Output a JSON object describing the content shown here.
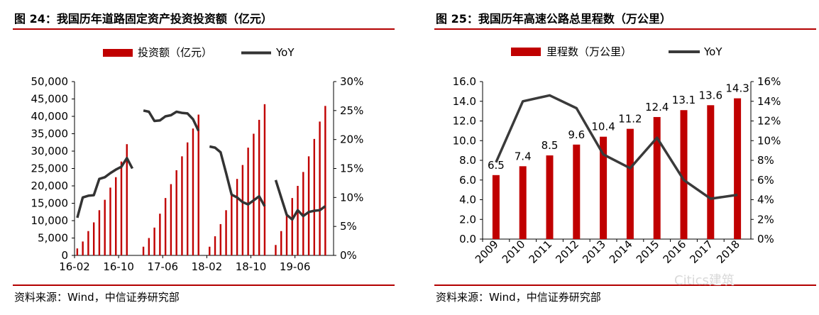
{
  "left": {
    "title": "图 24：我国历年道路固定资产投资投资额（亿元）",
    "source": "资料来源：Wind，中信证券研究部",
    "chart_data": {
      "type": "bar",
      "legend_position": "top",
      "grid": false,
      "x_tick_labels": [
        "16-02",
        "16-10",
        "17-06",
        "18-02",
        "18-10",
        "19-06"
      ],
      "y_ticks": [
        "0",
        "5,000",
        "10,000",
        "15,000",
        "20,000",
        "25,000",
        "30,000",
        "35,000",
        "40,000",
        "45,000",
        "50,000"
      ],
      "y2_ticks": [
        "0%",
        "5%",
        "10%",
        "15%",
        "20%",
        "25%",
        "30%"
      ],
      "ylim": [
        0,
        50000
      ],
      "y2lim": [
        0,
        30
      ],
      "categories": [
        "16-02",
        "16-03",
        "16-04",
        "16-05",
        "16-06",
        "16-07",
        "16-08",
        "16-09",
        "16-10",
        "16-11",
        "16-12",
        "17-01",
        "17-02",
        "17-03",
        "17-04",
        "17-05",
        "17-06",
        "17-07",
        "17-08",
        "17-09",
        "17-10",
        "17-11",
        "17-12",
        "18-01",
        "18-02",
        "18-03",
        "18-04",
        "18-05",
        "18-06",
        "18-07",
        "18-08",
        "18-09",
        "18-10",
        "18-11",
        "18-12",
        "19-01",
        "19-02",
        "19-03",
        "19-04",
        "19-05",
        "19-06",
        "19-07",
        "19-08",
        "19-09",
        "19-10",
        "19-11",
        "19-12"
      ],
      "series": [
        {
          "name": "投资额（亿元）",
          "type": "bar",
          "color": "#c00000",
          "values": [
            2000,
            4000,
            7000,
            9500,
            13000,
            16000,
            19500,
            22500,
            27000,
            32000,
            null,
            null,
            2500,
            5000,
            8000,
            12000,
            16500,
            20500,
            24500,
            28500,
            32500,
            36500,
            40500,
            null,
            2500,
            5500,
            9000,
            13000,
            18000,
            22000,
            26000,
            31000,
            35000,
            39000,
            43500,
            null,
            3000,
            7000,
            12000,
            16500,
            20000,
            24000,
            28500,
            33500,
            38500,
            43000,
            null
          ]
        },
        {
          "name": "YoY",
          "type": "line",
          "color": "#333333",
          "values": [
            6.5,
            10,
            10.3,
            10.4,
            13.2,
            13.5,
            14.2,
            14.8,
            15.3,
            16.8,
            15,
            null,
            25,
            24.8,
            23.2,
            23.3,
            24.0,
            24.2,
            24.8,
            24.6,
            24.5,
            23.5,
            21.5,
            null,
            18.8,
            18.6,
            17.8,
            14.2,
            10.5,
            10.0,
            9.2,
            8.8,
            9.5,
            10.2,
            8.5,
            null,
            13,
            10,
            7.0,
            6.2,
            7.8,
            6.8,
            7.5,
            7.7,
            7.8,
            8.5,
            null
          ]
        }
      ]
    }
  },
  "right": {
    "title": "图 25：我国历年高速公路总里程数（万公里）",
    "source": "资料来源：Wind，中信证券研究部",
    "chart_data": {
      "type": "bar",
      "legend_position": "top",
      "grid": false,
      "categories": [
        "2009",
        "2010",
        "2011",
        "2012",
        "2013",
        "2014",
        "2015",
        "2016",
        "2017",
        "2018"
      ],
      "y_ticks": [
        "0.0",
        "2.0",
        "4.0",
        "6.0",
        "8.0",
        "10.0",
        "12.0",
        "14.0",
        "16.0"
      ],
      "y2_ticks": [
        "0%",
        "2%",
        "4%",
        "6%",
        "8%",
        "10%",
        "12%",
        "14%",
        "16%"
      ],
      "ylim": [
        0,
        16
      ],
      "y2lim": [
        0,
        16
      ],
      "data_labels": [
        "6.5",
        "7.4",
        "8.5",
        "9.6",
        "10.4",
        "11.2",
        "12.4",
        "13.1",
        "13.6",
        "14.3"
      ],
      "series": [
        {
          "name": "里程数（万公里）",
          "type": "bar",
          "color": "#c00000",
          "values": [
            6.5,
            7.4,
            8.5,
            9.6,
            10.4,
            11.2,
            12.4,
            13.1,
            13.6,
            14.3
          ]
        },
        {
          "name": "YoY",
          "type": "line",
          "color": "#3a3a3a",
          "values": [
            7.8,
            14.0,
            14.6,
            13.3,
            8.6,
            7.2,
            10.3,
            6.0,
            4.1,
            4.5
          ]
        }
      ]
    }
  },
  "watermark": "Citics建筑"
}
